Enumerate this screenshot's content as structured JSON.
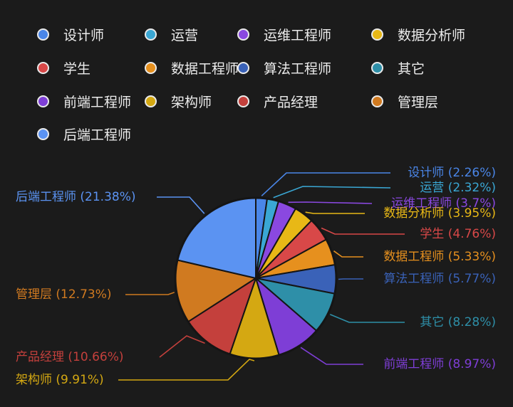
{
  "chart_data": {
    "type": "pie",
    "title": "",
    "legend_position": "top",
    "slices": [
      {
        "label": "设计师",
        "value": 2.26,
        "display": "设计师 (2.26%)",
        "color": "#4a86e8"
      },
      {
        "label": "运营",
        "value": 2.32,
        "display": "运营 (2.32%)",
        "color": "#3aa7d4"
      },
      {
        "label": "运维工程师",
        "value": 3.7,
        "display": "运维工程师 (3.7%)",
        "color": "#8a48e0"
      },
      {
        "label": "数据分析师",
        "value": 3.95,
        "display": "数据分析师 (3.95%)",
        "color": "#e8b816"
      },
      {
        "label": "学生",
        "value": 4.76,
        "display": "学生 (4.76%)",
        "color": "#d84848"
      },
      {
        "label": "数据工程师",
        "value": 5.33,
        "display": "数据工程师 (5.33%)",
        "color": "#e6901e"
      },
      {
        "label": "算法工程师",
        "value": 5.77,
        "display": "算法工程师 (5.77%)",
        "color": "#3a62b8"
      },
      {
        "label": "其它",
        "value": 8.28,
        "display": "其它 (8.28%)",
        "color": "#2e8fa8"
      },
      {
        "label": "前端工程师",
        "value": 8.97,
        "display": "前端工程师 (8.97%)",
        "color": "#7e3ed6"
      },
      {
        "label": "架构师",
        "value": 9.91,
        "display": "架构师 (9.91%)",
        "color": "#d4a812"
      },
      {
        "label": "产品经理",
        "value": 10.66,
        "display": "产品经理 (10.66%)",
        "color": "#c4403c"
      },
      {
        "label": "管理层",
        "value": 12.73,
        "display": "管理层 (12.73%)",
        "color": "#d07a20"
      },
      {
        "label": "后端工程师",
        "value": 21.38,
        "display": "后端工程师 (21.38%)",
        "color": "#5b93f2"
      }
    ]
  }
}
